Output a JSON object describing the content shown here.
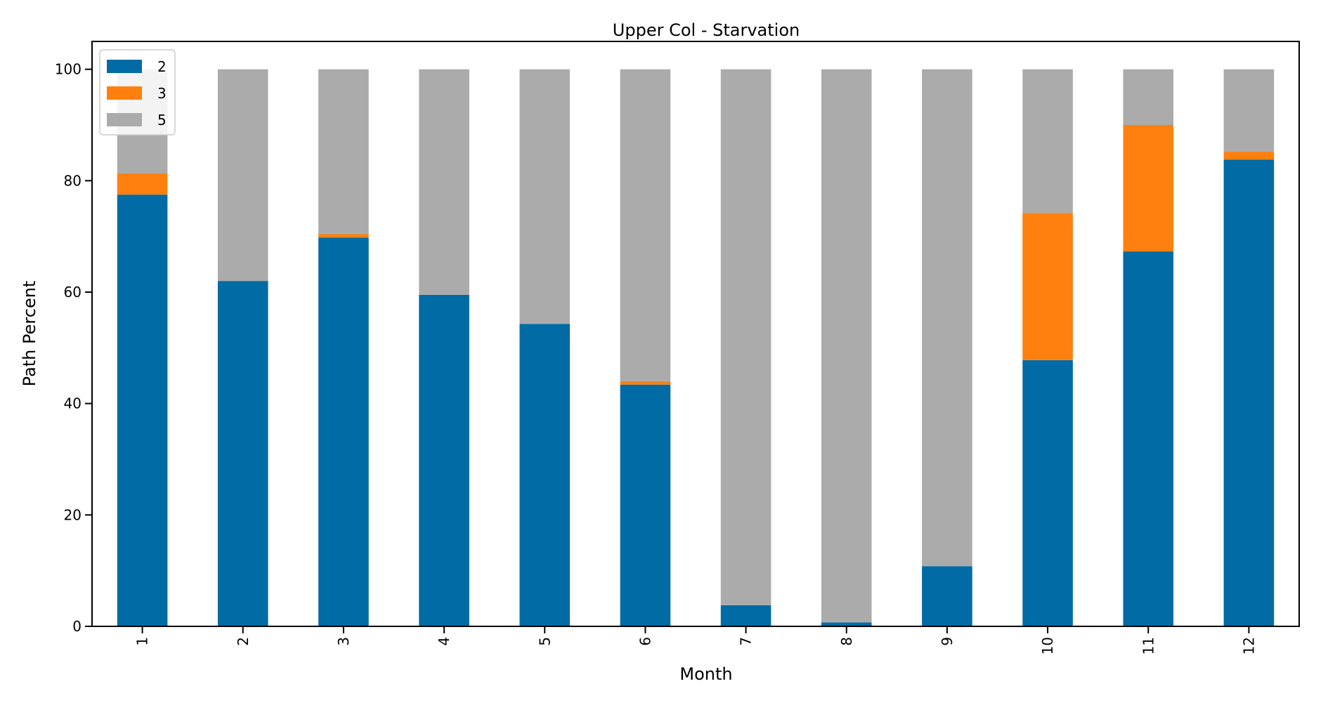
{
  "chart_data": {
    "type": "bar",
    "stacked": true,
    "title": "Upper Col - Starvation",
    "xlabel": "Month",
    "ylabel": "Path Percent",
    "categories": [
      "1",
      "2",
      "3",
      "4",
      "5",
      "6",
      "7",
      "8",
      "9",
      "10",
      "11",
      "12"
    ],
    "series": [
      {
        "name": "2",
        "color": "#006ba4",
        "values": [
          77.5,
          62.0,
          69.8,
          59.5,
          54.3,
          43.4,
          3.8,
          0.7,
          10.8,
          47.8,
          67.3,
          83.8
        ]
      },
      {
        "name": "3",
        "color": "#ff800e",
        "values": [
          3.8,
          0.0,
          0.6,
          0.0,
          0.0,
          0.6,
          0.0,
          0.0,
          0.0,
          26.4,
          22.7,
          1.4
        ]
      },
      {
        "name": "5",
        "color": "#ababab",
        "values": [
          18.7,
          38.0,
          29.6,
          40.5,
          45.7,
          56.0,
          96.2,
          99.3,
          89.2,
          25.8,
          10.0,
          14.8
        ]
      }
    ],
    "ylim": [
      0,
      105
    ],
    "yticks": [
      0,
      20,
      40,
      60,
      80,
      100
    ],
    "grid": false,
    "legend_position": "top-left"
  }
}
